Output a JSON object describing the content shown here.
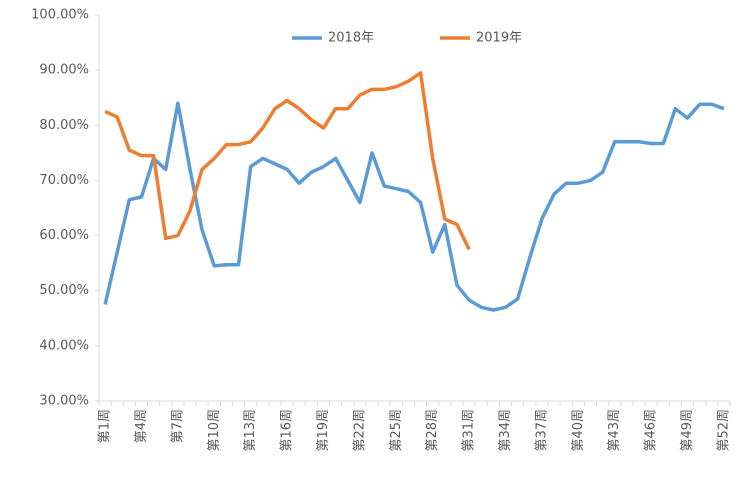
{
  "chart_data": {
    "type": "line",
    "categories": [
      "第1周",
      null,
      null,
      "第4周",
      null,
      null,
      "第7周",
      null,
      null,
      "第10周",
      null,
      null,
      "第13周",
      null,
      null,
      "第16周",
      null,
      null,
      "第19周",
      null,
      null,
      "第22周",
      null,
      null,
      "第25周",
      null,
      null,
      "第28周",
      null,
      null,
      "第31周",
      null,
      null,
      "第34周",
      null,
      null,
      "第37周",
      null,
      null,
      "第40周",
      null,
      null,
      "第43周",
      null,
      null,
      "第46周",
      null,
      null,
      "第49周",
      null,
      null,
      "第52周"
    ],
    "series": [
      {
        "name": "2018年",
        "color": "#5b9bd5",
        "values": [
          47.5,
          57,
          66.5,
          67,
          74,
          72,
          84,
          72,
          61,
          54.5,
          54.7,
          54.7,
          72.5,
          74,
          73,
          72,
          69.5,
          71.5,
          72.5,
          74,
          70,
          66,
          75,
          69,
          68.5,
          68,
          66,
          57,
          62,
          51,
          48.3,
          47,
          46.5,
          47,
          48.5,
          56,
          63,
          67.5,
          69.5,
          69.5,
          70,
          71.5,
          77,
          77,
          77,
          76.7,
          76.7,
          83,
          81.3,
          83.8,
          83.8,
          83
        ]
      },
      {
        "name": "2019年",
        "color": "#ed7d31",
        "values": [
          82.5,
          81.5,
          75.5,
          74.5,
          74.5,
          59.5,
          60,
          64.5,
          72,
          74,
          76.5,
          76.5,
          77,
          79.5,
          83,
          84.5,
          83,
          81,
          79.5,
          83,
          83,
          85.5,
          86.5,
          86.5,
          87,
          88,
          89.5,
          74,
          63,
          62,
          57.5,
          null,
          null,
          null,
          null,
          null,
          null,
          null,
          null,
          null,
          null,
          null,
          null,
          null,
          null,
          null,
          null,
          null,
          null,
          null,
          null,
          null
        ]
      }
    ],
    "ylim": [
      30,
      100
    ],
    "yticks": [
      {
        "value": 30,
        "label": "30.00%"
      },
      {
        "value": 40,
        "label": "40.00%"
      },
      {
        "value": 50,
        "label": "50.00%"
      },
      {
        "value": 60,
        "label": "60.00%"
      },
      {
        "value": 70,
        "label": "70.00%"
      },
      {
        "value": 80,
        "label": "80.00%"
      },
      {
        "value": 90,
        "label": "90.00%"
      },
      {
        "value": 100,
        "label": "100.00%"
      }
    ],
    "legend": "top"
  }
}
